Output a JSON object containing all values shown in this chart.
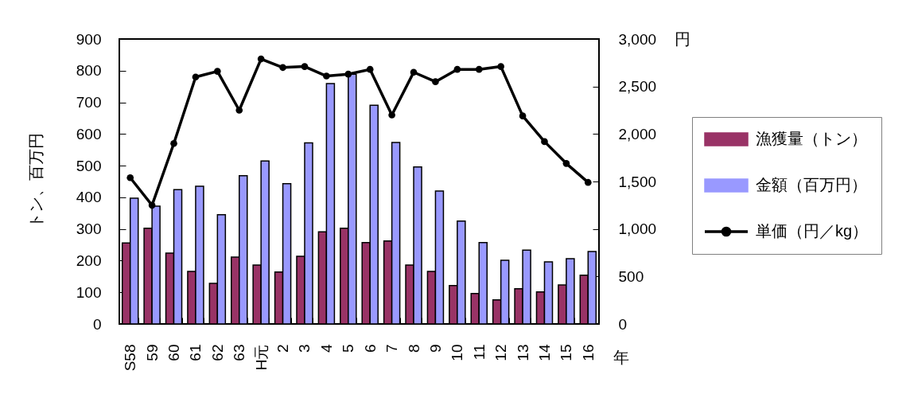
{
  "chart_data": {
    "type": "bar",
    "ylabel": "トン、百万円",
    "y2label": "円",
    "xlabel": "年",
    "categories": [
      "S58",
      "59",
      "60",
      "61",
      "62",
      "63",
      "H元",
      "2",
      "3",
      "4",
      "5",
      "6",
      "7",
      "8",
      "9",
      "10",
      "11",
      "12",
      "13",
      "14",
      "15",
      "16"
    ],
    "series": [
      {
        "name": "漁獲量（トン）",
        "color": "#993366",
        "values": [
          256,
          302,
          224,
          166,
          128,
          211,
          186,
          164,
          214,
          291,
          302,
          257,
          262,
          186,
          166,
          121,
          96,
          76,
          111,
          101,
          123,
          154
        ]
      },
      {
        "name": "金額（百万円）",
        "color": "#9999ff",
        "values": [
          397,
          372,
          424,
          435,
          345,
          468,
          515,
          443,
          572,
          759,
          789,
          691,
          573,
          496,
          420,
          325,
          257,
          201,
          233,
          196,
          206,
          229
        ]
      },
      {
        "name": "単価（円／kg）",
        "type": "line",
        "axis": "y2",
        "color": "#000000",
        "values": [
          1540,
          1250,
          1900,
          2600,
          2660,
          2250,
          2790,
          2700,
          2710,
          2610,
          2630,
          2680,
          2200,
          2650,
          2550,
          2680,
          2680,
          2710,
          2190,
          1920,
          1690,
          1490
        ]
      }
    ],
    "ylim": [
      0,
      900
    ],
    "yticks": [
      0,
      100,
      200,
      300,
      400,
      500,
      600,
      700,
      800,
      900
    ],
    "y2lim": [
      0,
      3000
    ],
    "y2ticks": [
      0,
      500,
      {
        "value": 1000,
        "label": "1,000"
      },
      {
        "value": 1500,
        "label": "1,500"
      },
      {
        "value": 2000,
        "label": "2,000"
      },
      {
        "value": 2500,
        "label": "2,500"
      },
      {
        "value": 3000,
        "label": "3,000"
      }
    ],
    "marker": "circle",
    "legend": "right"
  }
}
